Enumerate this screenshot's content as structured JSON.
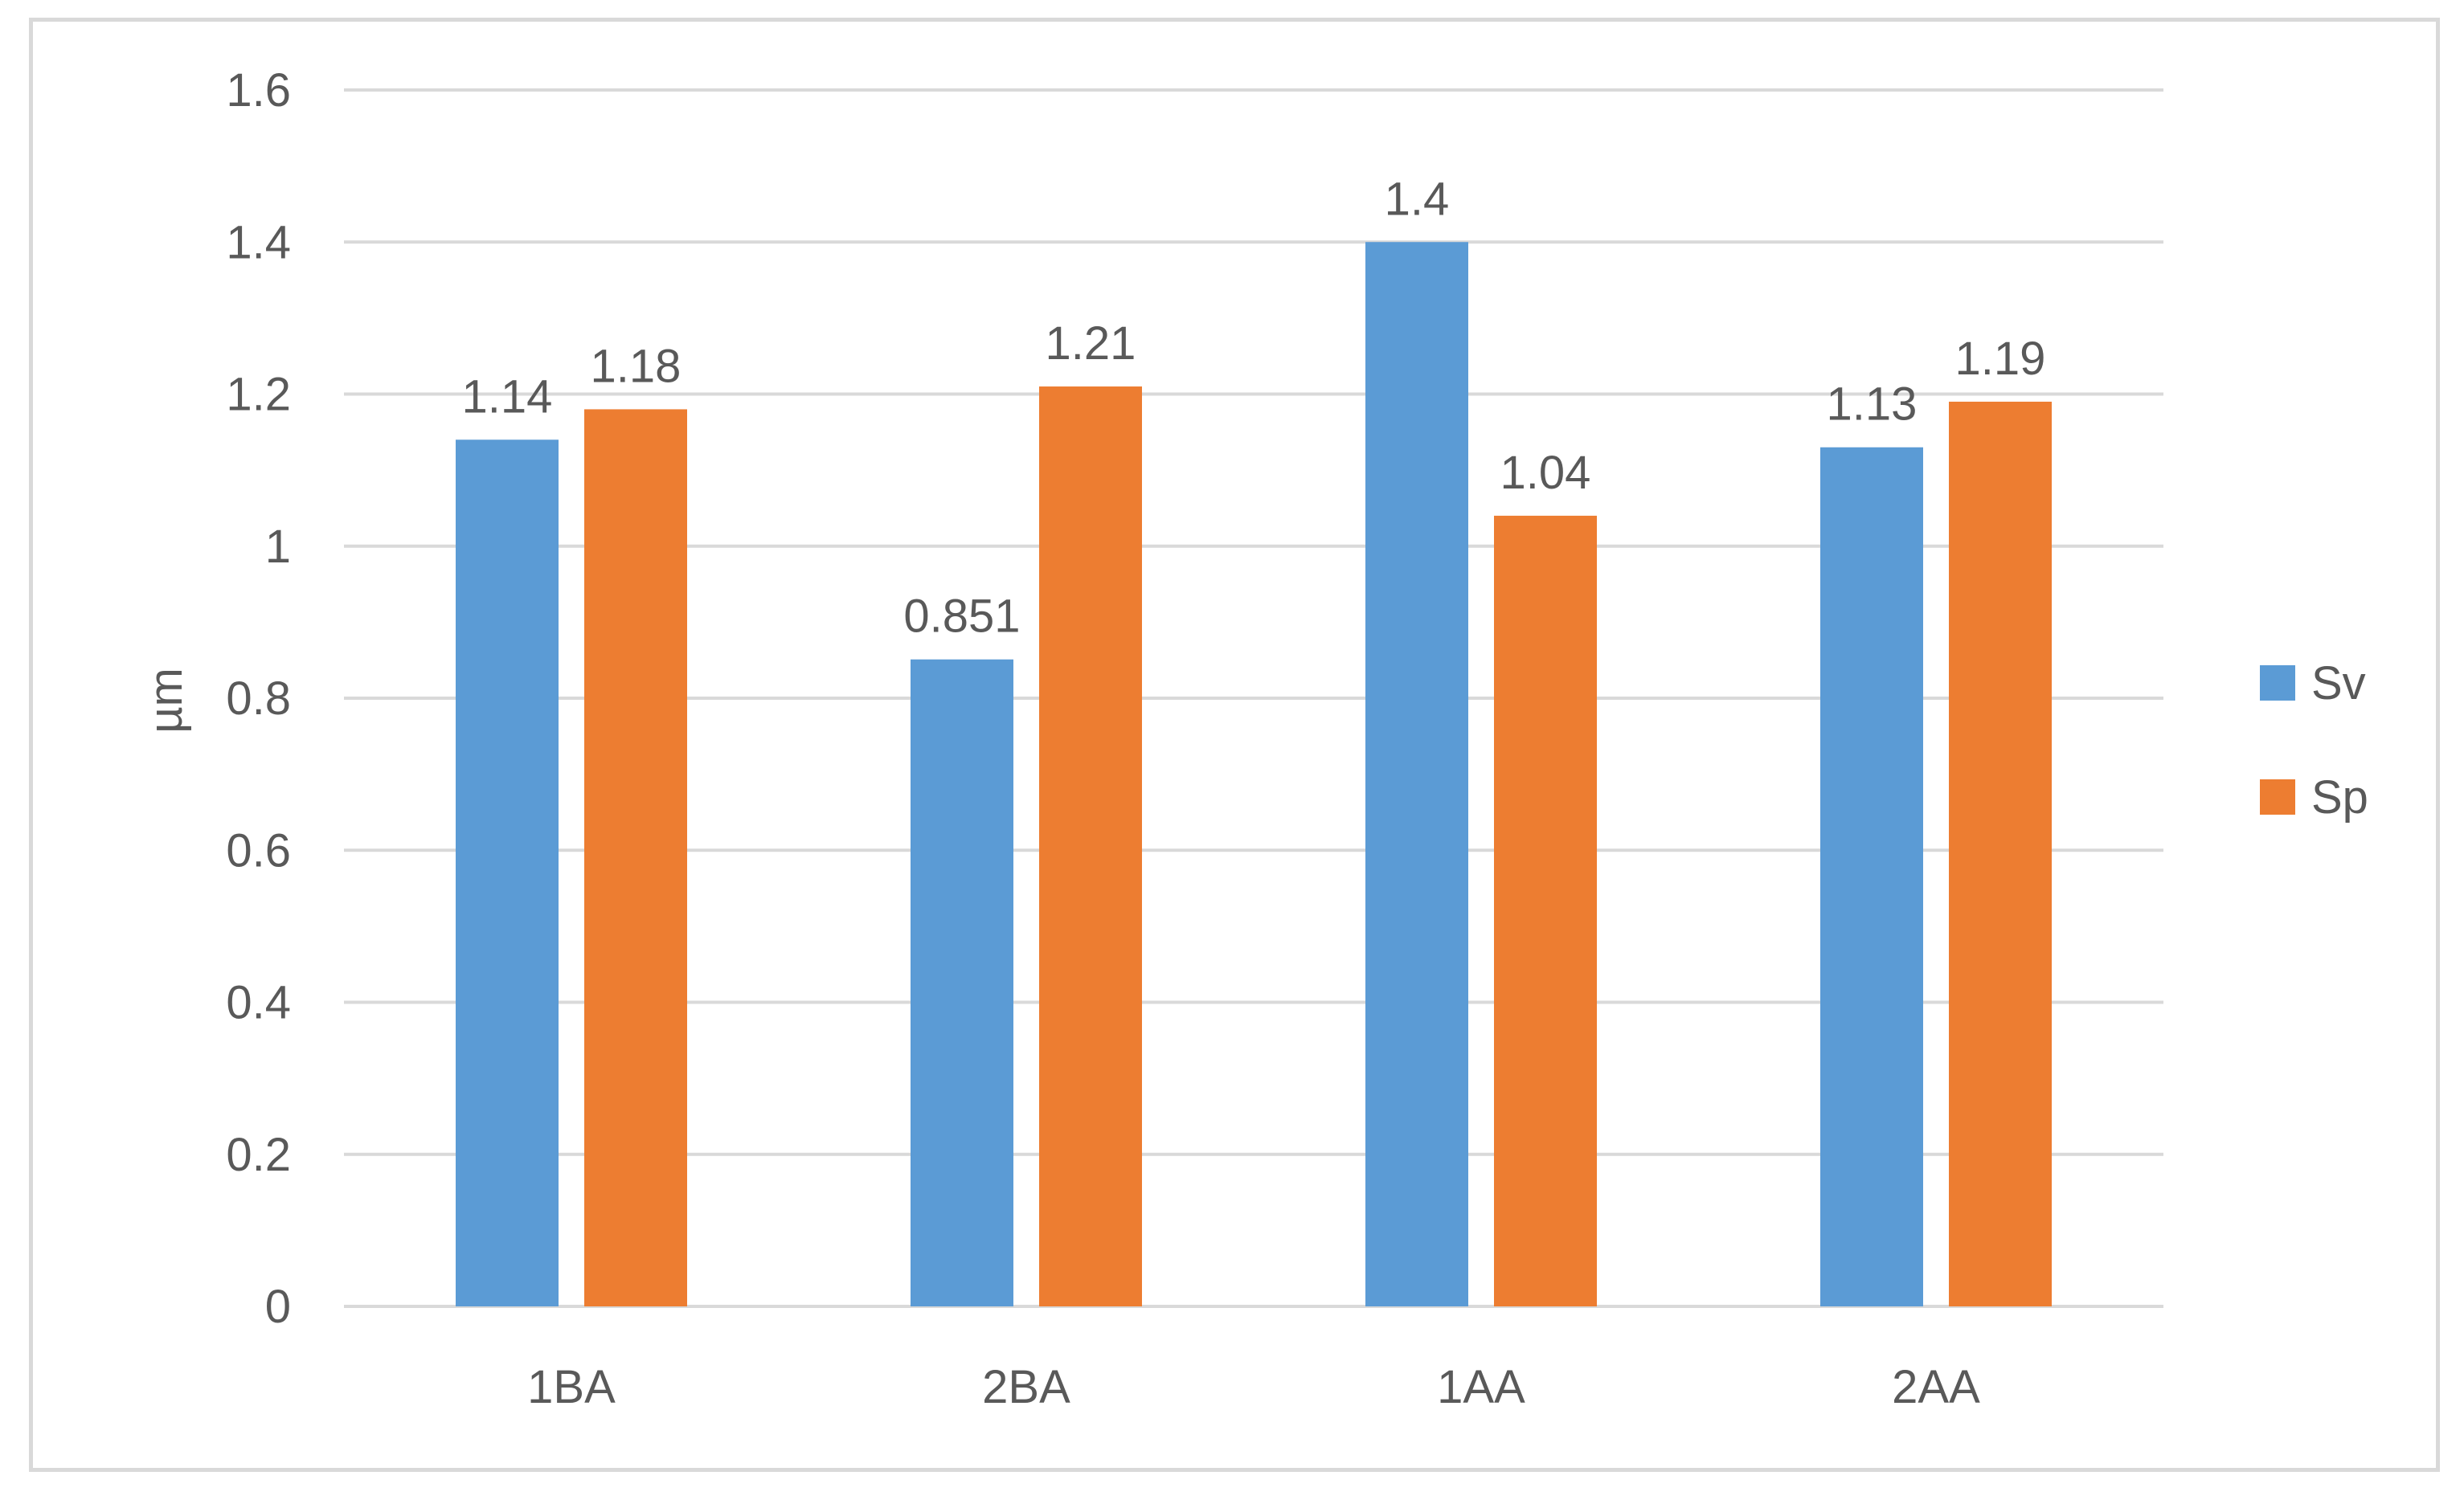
{
  "chart_data": {
    "type": "bar",
    "categories": [
      "1BA",
      "2BA",
      "1AA",
      "2AA"
    ],
    "series": [
      {
        "name": "Sv",
        "values": [
          1.14,
          0.851,
          1.4,
          1.13
        ],
        "labels": [
          "1.14",
          "0.851",
          "1.4",
          "1.13"
        ],
        "color": "#5B9BD5"
      },
      {
        "name": "Sp",
        "values": [
          1.18,
          1.21,
          1.04,
          1.19
        ],
        "labels": [
          "1.18",
          "1.21",
          "1.04",
          "1.19"
        ],
        "color": "#ED7D31"
      }
    ],
    "ylabel": "µm",
    "ylim": [
      0,
      1.6
    ],
    "yticks": [
      "0",
      "0.2",
      "0.4",
      "0.6",
      "0.8",
      "1",
      "1.2",
      "1.4",
      "1.6"
    ],
    "grid": true,
    "gridColor": "#d9d9d9",
    "legend_position": "right"
  }
}
